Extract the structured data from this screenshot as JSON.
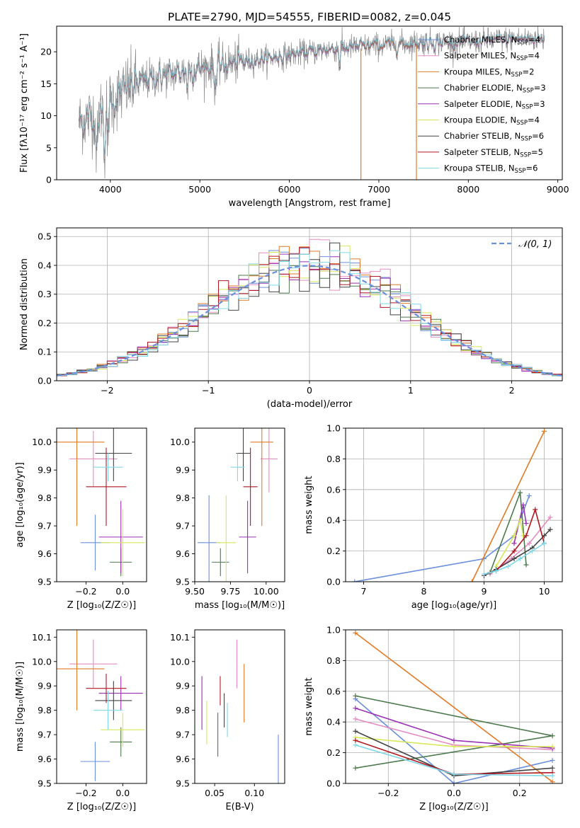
{
  "figure": {
    "title": "PLATE=2790, MJD=54555, FIBERID=0082, z=0.045"
  },
  "colors": {
    "Chabrier MILES": "#6a8fdc",
    "Salpeter MILES": "#e58cc3",
    "Kroupa MILES": "#e07b27",
    "Chabrier ELODIE": "#4d7a4d",
    "Salpeter ELODIE": "#9b30b5",
    "Kroupa ELODIE": "#d8e85a",
    "Chabrier STELIB": "#444444",
    "Salpeter STELIB": "#b01822",
    "Kroupa STELIB": "#80d8e8",
    "data": "#888888"
  },
  "chart_data": [
    {
      "id": "spectrum",
      "type": "line",
      "title": "",
      "xlabel": "wavelength [Angstrom, rest frame]",
      "ylabel": "Flux [fλ10⁻¹⁷ erg cm⁻² s⁻¹ A⁻¹]",
      "xlim": [
        3400,
        9050
      ],
      "ylim": [
        0,
        24
      ],
      "xticks": [
        4000,
        5000,
        6000,
        7000,
        8000,
        9000
      ],
      "yticks": [
        0,
        5,
        10,
        15,
        20
      ],
      "grid": false,
      "legend_position": "top-right",
      "data_range": [
        3650,
        8850
      ],
      "continuum": [
        [
          3650,
          9
        ],
        [
          3800,
          10
        ],
        [
          4000,
          12
        ],
        [
          4200,
          14.5
        ],
        [
          4500,
          16
        ],
        [
          5000,
          17.5
        ],
        [
          5500,
          18.5
        ],
        [
          6000,
          19.5
        ],
        [
          6500,
          20.5
        ],
        [
          7000,
          21
        ],
        [
          7500,
          21.5
        ],
        [
          8000,
          21.5
        ],
        [
          8500,
          22
        ],
        [
          8850,
          22
        ]
      ],
      "features": [
        {
          "label": "dip",
          "x": 3850,
          "y": 3
        },
        {
          "label": "dip",
          "x": 3960,
          "y": 4
        },
        {
          "label": "Kroupa MILES edge",
          "x": 6800,
          "y": 0
        },
        {
          "label": "Kroupa MILES cut",
          "x": 7420,
          "y": 0
        }
      ],
      "series": [
        {
          "name": "Chabrier MILES",
          "nssp": "4"
        },
        {
          "name": "Salpeter MILES",
          "nssp": "4"
        },
        {
          "name": "Kroupa MILES",
          "nssp": "2"
        },
        {
          "name": "Chabrier ELODIE",
          "nssp": "3"
        },
        {
          "name": "Salpeter ELODIE",
          "nssp": "3"
        },
        {
          "name": "Kroupa ELODIE",
          "nssp": "4"
        },
        {
          "name": "Chabrier STELIB",
          "nssp": "6"
        },
        {
          "name": "Salpeter STELIB",
          "nssp": "5"
        },
        {
          "name": "Kroupa STELIB",
          "nssp": "6"
        }
      ]
    },
    {
      "id": "residuals",
      "type": "bar",
      "xlabel": "(data-model)/error",
      "ylabel": "Normed distribution",
      "xlim": [
        -2.5,
        2.5
      ],
      "ylim": [
        0,
        0.53
      ],
      "xticks": [
        -2,
        -1,
        0,
        1,
        2
      ],
      "yticks": [
        0.0,
        0.1,
        0.2,
        0.3,
        0.4,
        0.5
      ],
      "grid": true,
      "legend_position": "top-right",
      "legend": "𝒩(0, 1)",
      "bin_width": 0.1,
      "reference_curve": "gaussian mean 0 sigma 1"
    },
    {
      "id": "z-age",
      "type": "scatter",
      "xlabel": "Z [log₁₀(Z/Z☉)]",
      "ylabel": "age  [log₁₀(age/yr)]",
      "xlim": [
        -0.36,
        0.13
      ],
      "ylim": [
        9.5,
        10.05
      ],
      "xticks": [
        -0.2,
        0.0
      ],
      "yticks": [
        9.5,
        9.6,
        9.7,
        9.8,
        9.9,
        10.0
      ],
      "grid": false,
      "points": [
        {
          "name": "Chabrier MILES",
          "x": -0.15,
          "xerr": 0.08,
          "y": 9.64,
          "yerr": 0.1
        },
        {
          "name": "Salpeter MILES",
          "x": -0.16,
          "xerr": 0.13,
          "y": 9.94,
          "yerr": 0.1
        },
        {
          "name": "Kroupa MILES",
          "x": -0.25,
          "xerr": 0.15,
          "y": 10.0,
          "yerr": 0.3
        },
        {
          "name": "Chabrier ELODIE",
          "x": -0.01,
          "xerr": 0.06,
          "y": 9.57,
          "yerr": 0.05
        },
        {
          "name": "Salpeter ELODIE",
          "x": -0.01,
          "xerr": 0.12,
          "y": 9.66,
          "yerr": 0.13
        },
        {
          "name": "Kroupa ELODIE",
          "x": 0.0,
          "xerr": 0.12,
          "y": 9.64,
          "yerr": 0.12
        },
        {
          "name": "Chabrier STELIB",
          "x": -0.05,
          "xerr": 0.1,
          "y": 9.96,
          "yerr": 0.1
        },
        {
          "name": "Salpeter STELIB",
          "x": -0.09,
          "xerr": 0.11,
          "y": 9.84,
          "yerr": 0.14
        },
        {
          "name": "Kroupa STELIB",
          "x": -0.08,
          "xerr": 0.08,
          "y": 9.91,
          "yerr": 0.05
        }
      ]
    },
    {
      "id": "mass-age",
      "type": "scatter",
      "xlabel": "mass [log₁₀(M/M☉)]",
      "ylabel": "",
      "xlim": [
        9.5,
        10.13
      ],
      "ylim": [
        9.5,
        10.05
      ],
      "xticks": [
        9.5,
        9.75,
        10.0
      ],
      "yticks": [
        9.5,
        9.6,
        9.7,
        9.8,
        9.9,
        10.0
      ],
      "grid": false,
      "points": [
        {
          "name": "Chabrier MILES",
          "x": 9.6,
          "xerr": 0.08,
          "y": 9.64,
          "yerr": 0.17
        },
        {
          "name": "Salpeter MILES",
          "x": 10.02,
          "xerr": 0.06,
          "y": 9.94,
          "yerr": 0.12
        },
        {
          "name": "Kroupa MILES",
          "x": 9.97,
          "xerr": 0.08,
          "y": 10.0,
          "yerr": 0.3
        },
        {
          "name": "Chabrier ELODIE",
          "x": 9.68,
          "xerr": 0.06,
          "y": 9.57,
          "yerr": 0.05
        },
        {
          "name": "Salpeter ELODIE",
          "x": 9.87,
          "xerr": 0.06,
          "y": 9.66,
          "yerr": 0.13
        },
        {
          "name": "Kroupa ELODIE",
          "x": 9.72,
          "xerr": 0.07,
          "y": 9.64,
          "yerr": 0.17
        },
        {
          "name": "Chabrier STELIB",
          "x": 9.84,
          "xerr": 0.05,
          "y": 9.96,
          "yerr": 0.1
        },
        {
          "name": "Salpeter STELIB",
          "x": 9.89,
          "xerr": 0.05,
          "y": 9.84,
          "yerr": 0.14
        },
        {
          "name": "Kroupa STELIB",
          "x": 9.8,
          "xerr": 0.05,
          "y": 9.91,
          "yerr": 0.05
        }
      ]
    },
    {
      "id": "age-weight",
      "type": "line",
      "xlabel": "age  [log₁₀(age/yr)]",
      "ylabel": "mass weight",
      "xlim": [
        6.7,
        10.3
      ],
      "ylim": [
        0.0,
        1.0
      ],
      "xticks": [
        7,
        8,
        9,
        10
      ],
      "yticks": [
        0.0,
        0.2,
        0.4,
        0.6,
        0.8,
        1.0
      ],
      "grid": true,
      "series": [
        {
          "name": "Chabrier MILES",
          "x": [
            6.85,
            9.0,
            9.5,
            9.75
          ],
          "y": [
            0.0,
            0.15,
            0.3,
            0.56
          ]
        },
        {
          "name": "Salpeter MILES",
          "x": [
            9.1,
            9.45,
            9.75,
            10.1
          ],
          "y": [
            0.05,
            0.15,
            0.25,
            0.42
          ]
        },
        {
          "name": "Kroupa MILES",
          "x": [
            8.8,
            10.0
          ],
          "y": [
            0.0,
            0.98
          ]
        },
        {
          "name": "Chabrier ELODIE",
          "x": [
            9.1,
            9.6,
            9.7
          ],
          "y": [
            0.06,
            0.58,
            0.11
          ]
        },
        {
          "name": "Salpeter ELODIE",
          "x": [
            9.5,
            9.65,
            9.7
          ],
          "y": [
            0.25,
            0.5,
            0.38
          ]
        },
        {
          "name": "Kroupa ELODIE",
          "x": [
            9.2,
            9.5,
            9.6,
            9.65
          ],
          "y": [
            0.1,
            0.3,
            0.4,
            0.3
          ]
        },
        {
          "name": "Chabrier STELIB",
          "x": [
            9.0,
            9.2,
            9.5,
            9.8,
            10.0,
            10.1
          ],
          "y": [
            0.04,
            0.08,
            0.15,
            0.22,
            0.3,
            0.34
          ]
        },
        {
          "name": "Salpeter STELIB",
          "x": [
            9.2,
            9.5,
            9.7,
            9.85,
            10.0
          ],
          "y": [
            0.07,
            0.2,
            0.3,
            0.47,
            0.25
          ]
        },
        {
          "name": "Kroupa STELIB",
          "x": [
            9.0,
            9.2,
            9.4,
            9.6,
            9.8,
            10.0
          ],
          "y": [
            0.05,
            0.07,
            0.1,
            0.15,
            0.2,
            0.25
          ]
        }
      ]
    },
    {
      "id": "z-mass",
      "type": "scatter",
      "xlabel": "Z [log₁₀(Z/Z☉)]",
      "ylabel": "mass [log₁₀(M/M☉)]",
      "xlim": [
        -0.36,
        0.13
      ],
      "ylim": [
        9.5,
        10.13
      ],
      "xticks": [
        -0.2,
        0.0
      ],
      "yticks": [
        9.5,
        9.6,
        9.7,
        9.8,
        9.9,
        10.0,
        10.1
      ],
      "grid": false,
      "points": [
        {
          "name": "Chabrier MILES",
          "x": -0.15,
          "xerr": 0.08,
          "y": 9.59,
          "yerr": 0.08
        },
        {
          "name": "Salpeter MILES",
          "x": -0.16,
          "xerr": 0.13,
          "y": 9.99,
          "yerr": 0.1
        },
        {
          "name": "Kroupa MILES",
          "x": -0.25,
          "xerr": 0.15,
          "y": 9.97,
          "yerr": 0.17
        },
        {
          "name": "Chabrier ELODIE",
          "x": -0.01,
          "xerr": 0.06,
          "y": 9.67,
          "yerr": 0.06
        },
        {
          "name": "Salpeter ELODIE",
          "x": -0.01,
          "xerr": 0.12,
          "y": 9.87,
          "yerr": 0.07
        },
        {
          "name": "Kroupa ELODIE",
          "x": 0.0,
          "xerr": 0.12,
          "y": 9.72,
          "yerr": 0.07
        },
        {
          "name": "Chabrier STELIB",
          "x": -0.05,
          "xerr": 0.1,
          "y": 9.84,
          "yerr": 0.08
        },
        {
          "name": "Salpeter STELIB",
          "x": -0.09,
          "xerr": 0.11,
          "y": 9.89,
          "yerr": 0.06
        },
        {
          "name": "Kroupa STELIB",
          "x": -0.08,
          "xerr": 0.08,
          "y": 9.8,
          "yerr": 0.08
        }
      ]
    },
    {
      "id": "ebv-mass",
      "type": "scatter",
      "xlabel": "E(B-V)",
      "ylabel": "",
      "xlim": [
        0.025,
        0.138
      ],
      "ylim": [
        9.5,
        10.13
      ],
      "xticks": [
        0.05,
        0.1
      ],
      "yticks": [
        9.5,
        9.6,
        9.7,
        9.8,
        9.9,
        10.0,
        10.1
      ],
      "grid": false,
      "points": [
        {
          "name": "Chabrier MILES",
          "x": 0.13,
          "y": 9.57,
          "yerr": 0.13
        },
        {
          "name": "Salpeter MILES",
          "x": 0.078,
          "y": 9.99,
          "yerr": 0.1
        },
        {
          "name": "Kroupa MILES",
          "x": 0.087,
          "y": 9.87,
          "yerr": 0.12
        },
        {
          "name": "Chabrier ELODIE",
          "x": 0.054,
          "y": 9.7,
          "yerr": 0.09
        },
        {
          "name": "Salpeter ELODIE",
          "x": 0.034,
          "y": 9.83,
          "yerr": 0.11
        },
        {
          "name": "Kroupa ELODIE",
          "x": 0.04,
          "y": 9.75,
          "yerr": 0.09
        },
        {
          "name": "Chabrier STELIB",
          "x": 0.062,
          "y": 9.8,
          "yerr": 0.07
        },
        {
          "name": "Salpeter STELIB",
          "x": 0.057,
          "y": 9.88,
          "yerr": 0.06
        },
        {
          "name": "Kroupa STELIB",
          "x": 0.066,
          "y": 9.76,
          "yerr": 0.07
        }
      ]
    },
    {
      "id": "z-weight",
      "type": "line",
      "xlabel": "Z [log₁₀(Z/Z☉)]",
      "ylabel": "mass weight",
      "xlim": [
        -0.33,
        0.33
      ],
      "ylim": [
        0.0,
        1.0
      ],
      "xticks": [
        -0.2,
        0.0,
        0.2
      ],
      "yticks": [
        0.0,
        0.2,
        0.4,
        0.6,
        0.8,
        1.0
      ],
      "grid": true,
      "series": [
        {
          "name": "Chabrier MILES",
          "x": [
            -0.3,
            0.0,
            0.3
          ],
          "y": [
            0.55,
            0.0,
            0.15
          ]
        },
        {
          "name": "Salpeter MILES",
          "x": [
            -0.3,
            0.0,
            0.3
          ],
          "y": [
            0.42,
            0.25,
            0.22
          ]
        },
        {
          "name": "Kroupa MILES",
          "x": [
            -0.3,
            0.3
          ],
          "y": [
            0.98,
            0.01
          ]
        },
        {
          "name": "Chabrier ELODIE",
          "x": [
            -0.3,
            0.3,
            -0.3
          ],
          "y": [
            0.57,
            0.31,
            0.1
          ]
        },
        {
          "name": "Salpeter ELODIE",
          "x": [
            -0.3,
            0.0,
            0.3
          ],
          "y": [
            0.49,
            0.28,
            0.23
          ]
        },
        {
          "name": "Kroupa ELODIE",
          "x": [
            -0.3,
            0.0,
            0.3
          ],
          "y": [
            0.3,
            0.24,
            0.24
          ]
        },
        {
          "name": "Chabrier STELIB",
          "x": [
            -0.3,
            0.0,
            0.3
          ],
          "y": [
            0.34,
            0.05,
            0.1
          ]
        },
        {
          "name": "Salpeter STELIB",
          "x": [
            -0.3,
            0.0,
            0.3
          ],
          "y": [
            0.28,
            0.06,
            0.07
          ]
        },
        {
          "name": "Kroupa STELIB",
          "x": [
            -0.3,
            0.0,
            0.3
          ],
          "y": [
            0.25,
            0.06,
            0.05
          ]
        }
      ]
    }
  ]
}
